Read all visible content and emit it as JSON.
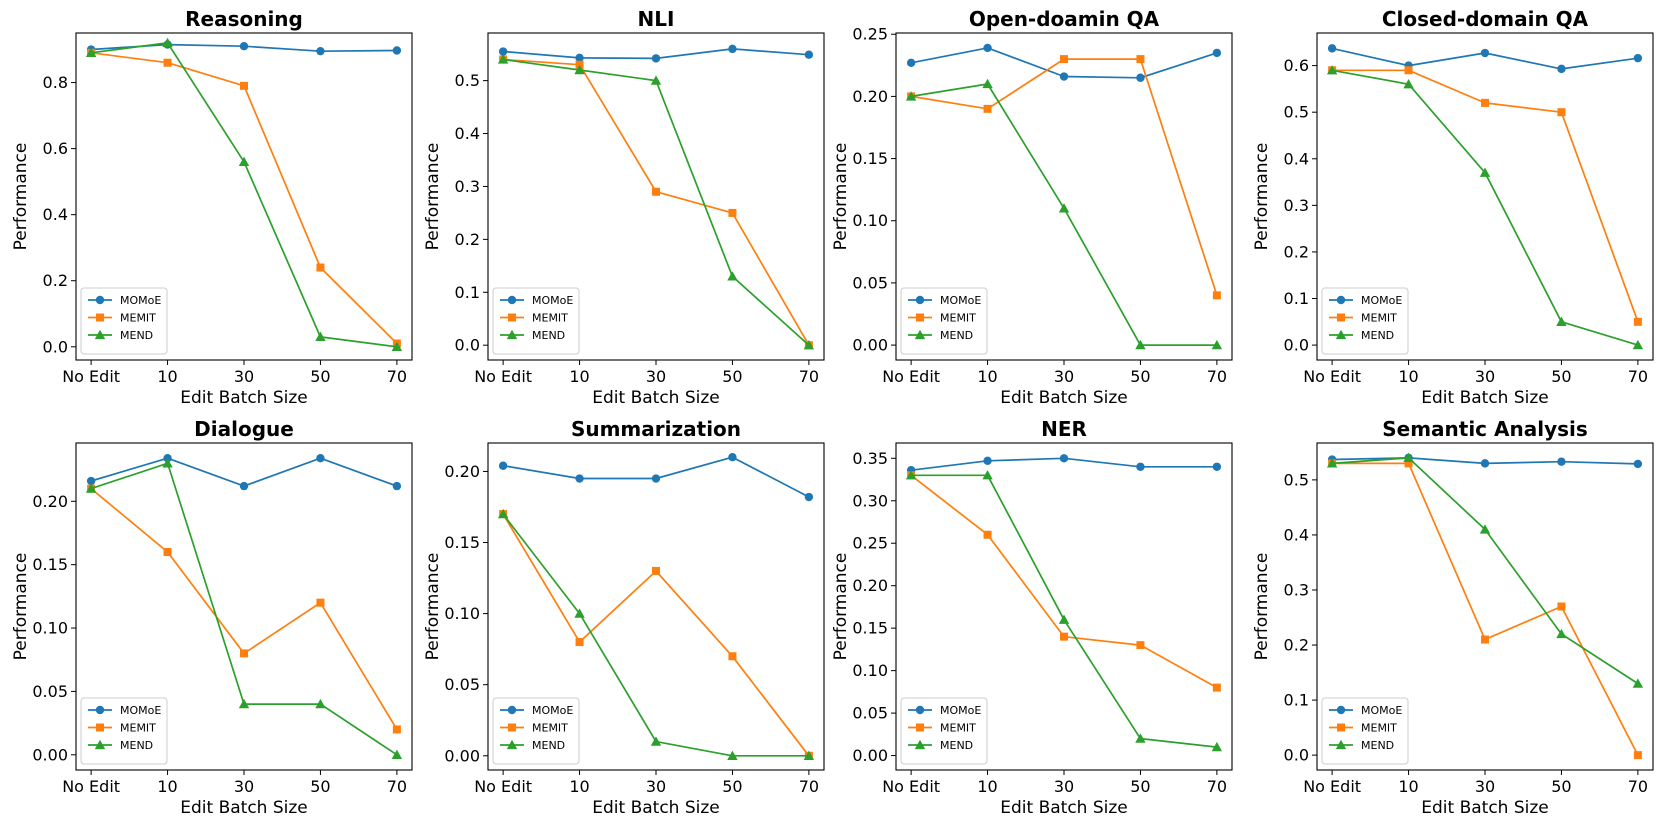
{
  "figure": {
    "colors": {
      "MOMoE": "#1f77b4",
      "MEMIT": "#ff7f0e",
      "MEND": "#2ca02c"
    },
    "markers": {
      "MOMoE": "circle",
      "MEMIT": "square",
      "MEND": "triangle"
    },
    "legend_placement": "lower-left"
  },
  "chart_data": [
    {
      "type": "line",
      "title": "Reasoning",
      "xlabel": "Edit Batch Size",
      "ylabel": "Performance",
      "categories": [
        "No Edit",
        "10",
        "30",
        "50",
        "70"
      ],
      "ylim": [
        -0.04,
        0.95
      ],
      "yticks": [
        "0.0",
        "0.2",
        "0.4",
        "0.6",
        "0.8"
      ],
      "ytick_values": [
        0,
        0.2,
        0.4,
        0.6,
        0.8
      ],
      "series": [
        {
          "name": "MOMoE",
          "values": [
            0.9,
            0.915,
            0.91,
            0.895,
            0.897
          ]
        },
        {
          "name": "MEMIT",
          "values": [
            0.89,
            0.86,
            0.79,
            0.24,
            0.01
          ]
        },
        {
          "name": "MEND",
          "values": [
            0.89,
            0.92,
            0.56,
            0.03,
            0.0
          ]
        }
      ]
    },
    {
      "type": "line",
      "title": "NLI",
      "xlabel": "Edit Batch Size",
      "ylabel": "Performance",
      "categories": [
        "No Edit",
        "10",
        "30",
        "50",
        "70"
      ],
      "ylim": [
        -0.028,
        0.59
      ],
      "yticks": [
        "0.0",
        "0.1",
        "0.2",
        "0.3",
        "0.4",
        "0.5"
      ],
      "ytick_values": [
        0,
        0.1,
        0.2,
        0.3,
        0.4,
        0.5
      ],
      "series": [
        {
          "name": "MOMoE",
          "values": [
            0.555,
            0.543,
            0.542,
            0.56,
            0.549
          ]
        },
        {
          "name": "MEMIT",
          "values": [
            0.54,
            0.53,
            0.29,
            0.25,
            0.0
          ]
        },
        {
          "name": "MEND",
          "values": [
            0.54,
            0.52,
            0.5,
            0.13,
            0.0
          ]
        }
      ]
    },
    {
      "type": "line",
      "title": "Open-doamin QA",
      "xlabel": "Edit Batch Size",
      "ylabel": "Performance",
      "categories": [
        "No Edit",
        "10",
        "30",
        "50",
        "70"
      ],
      "ylim": [
        -0.012,
        0.251
      ],
      "yticks": [
        "0.00",
        "0.05",
        "0.10",
        "0.15",
        "0.20",
        "0.25"
      ],
      "ytick_values": [
        0,
        0.05,
        0.1,
        0.15,
        0.2,
        0.25
      ],
      "series": [
        {
          "name": "MOMoE",
          "values": [
            0.227,
            0.239,
            0.216,
            0.215,
            0.235
          ]
        },
        {
          "name": "MEMIT",
          "values": [
            0.2,
            0.19,
            0.23,
            0.23,
            0.04
          ]
        },
        {
          "name": "MEND",
          "values": [
            0.2,
            0.21,
            0.11,
            0.0,
            0.0
          ]
        }
      ]
    },
    {
      "type": "line",
      "title": "Closed-domain QA",
      "xlabel": "Edit Batch Size",
      "ylabel": "Performance",
      "categories": [
        "No Edit",
        "10",
        "30",
        "50",
        "70"
      ],
      "ylim": [
        -0.032,
        0.67
      ],
      "yticks": [
        "0.0",
        "0.1",
        "0.2",
        "0.3",
        "0.4",
        "0.5",
        "0.6"
      ],
      "ytick_values": [
        0,
        0.1,
        0.2,
        0.3,
        0.4,
        0.5,
        0.6
      ],
      "series": [
        {
          "name": "MOMoE",
          "values": [
            0.637,
            0.6,
            0.627,
            0.593,
            0.616
          ]
        },
        {
          "name": "MEMIT",
          "values": [
            0.59,
            0.59,
            0.52,
            0.5,
            0.05
          ]
        },
        {
          "name": "MEND",
          "values": [
            0.59,
            0.56,
            0.37,
            0.05,
            0.0
          ]
        }
      ]
    },
    {
      "type": "line",
      "title": "Dialogue",
      "xlabel": "Edit Batch Size",
      "ylabel": "Performance",
      "categories": [
        "No Edit",
        "10",
        "30",
        "50",
        "70"
      ],
      "ylim": [
        -0.012,
        0.246
      ],
      "yticks": [
        "0.00",
        "0.05",
        "0.10",
        "0.15",
        "0.20"
      ],
      "ytick_values": [
        0,
        0.05,
        0.1,
        0.15,
        0.2
      ],
      "series": [
        {
          "name": "MOMoE",
          "values": [
            0.216,
            0.234,
            0.212,
            0.234,
            0.212
          ]
        },
        {
          "name": "MEMIT",
          "values": [
            0.21,
            0.16,
            0.08,
            0.12,
            0.02
          ]
        },
        {
          "name": "MEND",
          "values": [
            0.21,
            0.23,
            0.04,
            0.04,
            0.0
          ]
        }
      ]
    },
    {
      "type": "line",
      "title": "Summarization",
      "xlabel": "Edit Batch Size",
      "ylabel": "Performance",
      "categories": [
        "No Edit",
        "10",
        "30",
        "50",
        "70"
      ],
      "ylim": [
        -0.01,
        0.22
      ],
      "yticks": [
        "0.00",
        "0.05",
        "0.10",
        "0.15",
        "0.20"
      ],
      "ytick_values": [
        0,
        0.05,
        0.1,
        0.15,
        0.2
      ],
      "series": [
        {
          "name": "MOMoE",
          "values": [
            0.204,
            0.195,
            0.195,
            0.21,
            0.182
          ]
        },
        {
          "name": "MEMIT",
          "values": [
            0.17,
            0.08,
            0.13,
            0.07,
            0.0
          ]
        },
        {
          "name": "MEND",
          "values": [
            0.17,
            0.1,
            0.01,
            0.0,
            0.0
          ]
        }
      ]
    },
    {
      "type": "line",
      "title": "NER",
      "xlabel": "Edit Batch Size",
      "ylabel": "Performance",
      "categories": [
        "No Edit",
        "10",
        "30",
        "50",
        "70"
      ],
      "ylim": [
        -0.017,
        0.368
      ],
      "yticks": [
        "0.00",
        "0.05",
        "0.10",
        "0.15",
        "0.20",
        "0.25",
        "0.30",
        "0.35"
      ],
      "ytick_values": [
        0,
        0.05,
        0.1,
        0.15,
        0.2,
        0.25,
        0.3,
        0.35
      ],
      "series": [
        {
          "name": "MOMoE",
          "values": [
            0.336,
            0.347,
            0.35,
            0.34,
            0.34
          ]
        },
        {
          "name": "MEMIT",
          "values": [
            0.33,
            0.26,
            0.14,
            0.13,
            0.08
          ]
        },
        {
          "name": "MEND",
          "values": [
            0.33,
            0.33,
            0.16,
            0.02,
            0.01
          ]
        }
      ]
    },
    {
      "type": "line",
      "title": "Semantic Analysis",
      "xlabel": "Edit Batch Size",
      "ylabel": "Performance",
      "categories": [
        "No Edit",
        "10",
        "30",
        "50",
        "70"
      ],
      "ylim": [
        -0.027,
        0.567
      ],
      "yticks": [
        "0.0",
        "0.1",
        "0.2",
        "0.3",
        "0.4",
        "0.5"
      ],
      "ytick_values": [
        0,
        0.1,
        0.2,
        0.3,
        0.4,
        0.5
      ],
      "series": [
        {
          "name": "MOMoE",
          "values": [
            0.537,
            0.54,
            0.53,
            0.533,
            0.529
          ]
        },
        {
          "name": "MEMIT",
          "values": [
            0.53,
            0.53,
            0.21,
            0.27,
            0.0
          ]
        },
        {
          "name": "MEND",
          "values": [
            0.53,
            0.54,
            0.41,
            0.22,
            0.13
          ]
        }
      ]
    }
  ]
}
